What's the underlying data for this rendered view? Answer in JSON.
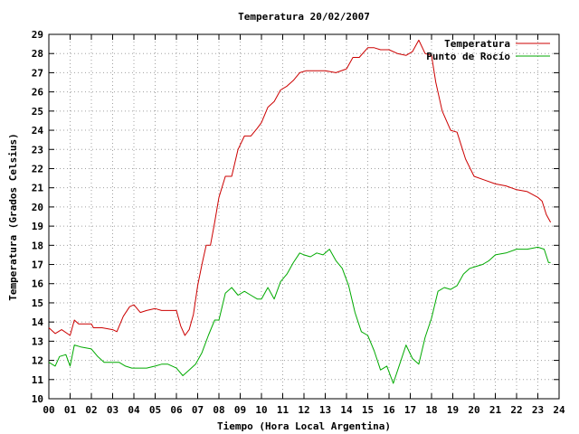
{
  "chart_data": {
    "type": "line",
    "title": "Temperatura 20/02/2007",
    "xlabel": "Tiempo (Hora Local Argentina)",
    "ylabel": "Temperatura (Grados Celsius)",
    "xlim": [
      0,
      24
    ],
    "ylim": [
      10,
      29
    ],
    "x_ticks": [
      "00",
      "01",
      "02",
      "03",
      "04",
      "05",
      "06",
      "07",
      "08",
      "09",
      "10",
      "11",
      "12",
      "13",
      "14",
      "15",
      "16",
      "17",
      "18",
      "19",
      "20",
      "21",
      "22",
      "23",
      "24"
    ],
    "y_ticks": [
      "10",
      "11",
      "12",
      "13",
      "14",
      "15",
      "16",
      "17",
      "18",
      "19",
      "20",
      "21",
      "22",
      "23",
      "24",
      "25",
      "26",
      "27",
      "28",
      "29"
    ],
    "grid": true,
    "legend_position": "top-right",
    "series": [
      {
        "name": "Temperatura",
        "color": "#cc0000",
        "x": [
          0,
          0.3,
          0.6,
          1.0,
          1.2,
          1.4,
          2.0,
          2.1,
          2.5,
          3.0,
          3.2,
          3.5,
          3.8,
          4.0,
          4.3,
          4.6,
          5.0,
          5.3,
          5.6,
          6.0,
          6.2,
          6.4,
          6.6,
          6.8,
          7.0,
          7.2,
          7.4,
          7.6,
          7.8,
          8.0,
          8.3,
          8.6,
          8.9,
          9.2,
          9.5,
          9.8,
          10.0,
          10.3,
          10.6,
          10.9,
          11.2,
          11.5,
          11.8,
          12.1,
          12.4,
          12.7,
          13.0,
          13.5,
          14.0,
          14.3,
          14.6,
          15.0,
          15.3,
          15.6,
          16.0,
          16.4,
          16.8,
          17.1,
          17.4,
          17.7,
          18.0,
          18.2,
          18.5,
          18.9,
          19.2,
          19.6,
          20.0,
          20.5,
          21.0,
          21.5,
          22.0,
          22.5,
          23.0,
          23.2,
          23.4,
          23.6
        ],
        "y": [
          13.7,
          13.4,
          13.6,
          13.3,
          14.1,
          13.9,
          13.9,
          13.7,
          13.7,
          13.6,
          13.5,
          14.3,
          14.8,
          14.9,
          14.5,
          14.6,
          14.7,
          14.6,
          14.6,
          14.6,
          13.8,
          13.3,
          13.6,
          14.4,
          15.9,
          17.0,
          18.0,
          18.0,
          19.2,
          20.5,
          21.6,
          21.6,
          23.0,
          23.7,
          23.7,
          24.1,
          24.4,
          25.2,
          25.5,
          26.1,
          26.3,
          26.6,
          27.0,
          27.1,
          27.1,
          27.1,
          27.1,
          27.0,
          27.2,
          27.8,
          27.8,
          28.3,
          28.3,
          28.2,
          28.2,
          28.0,
          27.9,
          28.1,
          28.7,
          28.0,
          27.9,
          26.5,
          25.0,
          24.0,
          23.9,
          22.5,
          21.6,
          21.4,
          21.2,
          21.1,
          20.9,
          20.8,
          20.5,
          20.3,
          19.6,
          19.2
        ]
      },
      {
        "name": "Punto de Rocío",
        "color": "#00aa00",
        "x": [
          0,
          0.3,
          0.5,
          0.8,
          1.0,
          1.2,
          1.5,
          2.0,
          2.3,
          2.6,
          3.0,
          3.3,
          3.6,
          3.9,
          4.2,
          4.6,
          5.0,
          5.3,
          5.6,
          6.0,
          6.3,
          6.6,
          6.9,
          7.2,
          7.5,
          7.8,
          8.0,
          8.3,
          8.6,
          8.9,
          9.2,
          9.5,
          9.8,
          10.0,
          10.3,
          10.6,
          10.9,
          11.2,
          11.5,
          11.8,
          12.0,
          12.3,
          12.6,
          12.9,
          13.2,
          13.5,
          13.8,
          14.1,
          14.4,
          14.7,
          15.0,
          15.3,
          15.6,
          15.9,
          16.2,
          16.5,
          16.8,
          17.1,
          17.4,
          17.7,
          18.0,
          18.3,
          18.6,
          18.9,
          19.2,
          19.5,
          19.8,
          20.1,
          20.4,
          20.7,
          21.0,
          21.5,
          22.0,
          22.5,
          23.0,
          23.3,
          23.5,
          23.6
        ],
        "y": [
          11.9,
          11.7,
          12.2,
          12.3,
          11.7,
          12.8,
          12.7,
          12.6,
          12.2,
          11.9,
          11.9,
          11.9,
          11.7,
          11.6,
          11.6,
          11.6,
          11.7,
          11.8,
          11.8,
          11.6,
          11.2,
          11.5,
          11.8,
          12.4,
          13.3,
          14.1,
          14.1,
          15.5,
          15.8,
          15.4,
          15.6,
          15.4,
          15.2,
          15.2,
          15.8,
          15.2,
          16.1,
          16.5,
          17.1,
          17.6,
          17.5,
          17.4,
          17.6,
          17.5,
          17.8,
          17.2,
          16.8,
          15.9,
          14.5,
          13.5,
          13.3,
          12.5,
          11.5,
          11.7,
          10.8,
          11.8,
          12.8,
          12.1,
          11.8,
          13.2,
          14.2,
          15.6,
          15.8,
          15.7,
          15.9,
          16.5,
          16.8,
          16.9,
          17.0,
          17.2,
          17.5,
          17.6,
          17.8,
          17.8,
          17.9,
          17.8,
          17.1,
          17.1
        ]
      }
    ]
  }
}
